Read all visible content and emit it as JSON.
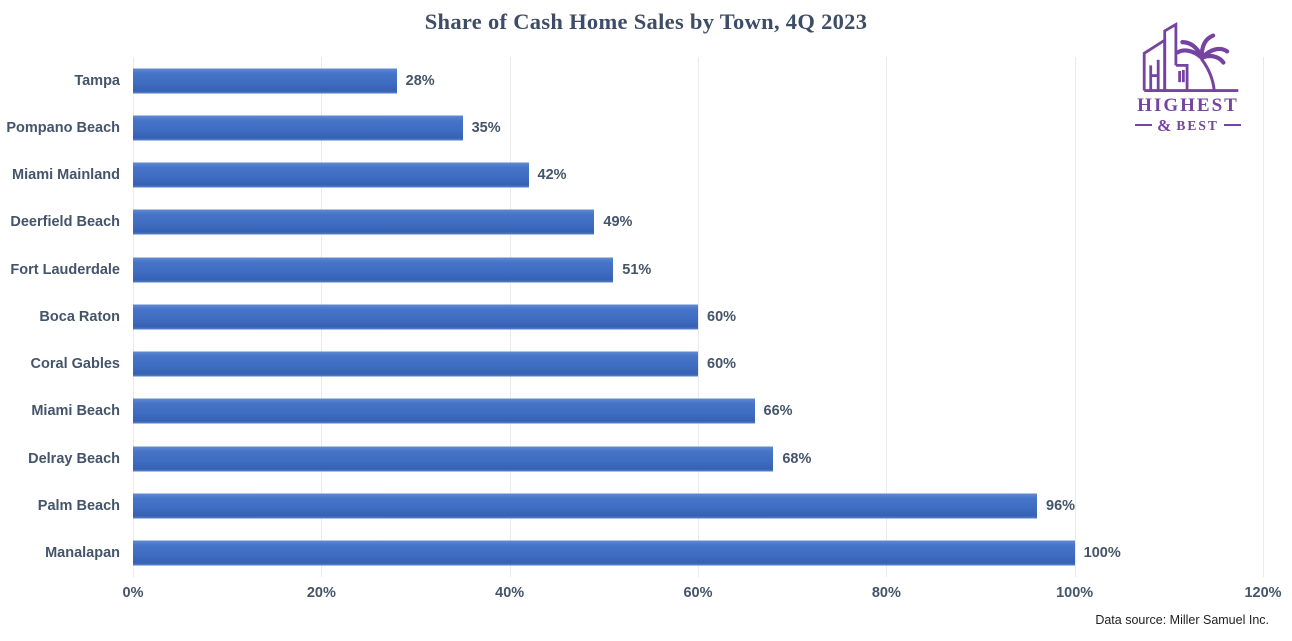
{
  "title": "Share of Cash Home Sales by Town, 4Q 2023",
  "source_note": "Data source: Miller Samuel Inc.",
  "logo": {
    "line1": "HIGHEST",
    "amp": "&",
    "line2": "BEST",
    "icon": "buildings-and-palm-tree-icon",
    "color": "#7444a0"
  },
  "colors": {
    "bar": "#4472c4",
    "title_text": "#3d4d66",
    "axis_text": "#44546a",
    "gridline": "#eaeaea",
    "background": "#ffffff"
  },
  "chart_data": {
    "type": "bar",
    "orientation": "horizontal",
    "title": "Share of Cash Home Sales by Town, 4Q 2023",
    "xlabel": "",
    "ylabel": "",
    "categories": [
      "Tampa",
      "Pompano Beach",
      "Miami Mainland",
      "Deerfield Beach",
      "Fort Lauderdale",
      "Boca Raton",
      "Coral Gables",
      "Miami Beach",
      "Delray Beach",
      "Palm Beach",
      "Manalapan"
    ],
    "values": [
      28,
      35,
      42,
      49,
      51,
      60,
      60,
      66,
      68,
      96,
      100
    ],
    "data_labels": [
      "28%",
      "35%",
      "42%",
      "49%",
      "51%",
      "60%",
      "60%",
      "66%",
      "68%",
      "96%",
      "100%"
    ],
    "xlim": [
      0,
      120
    ],
    "x_tick_step": 20,
    "x_ticks": [
      "0%",
      "20%",
      "40%",
      "60%",
      "80%",
      "100%",
      "120%"
    ],
    "grid": "vertical",
    "legend": "none"
  }
}
